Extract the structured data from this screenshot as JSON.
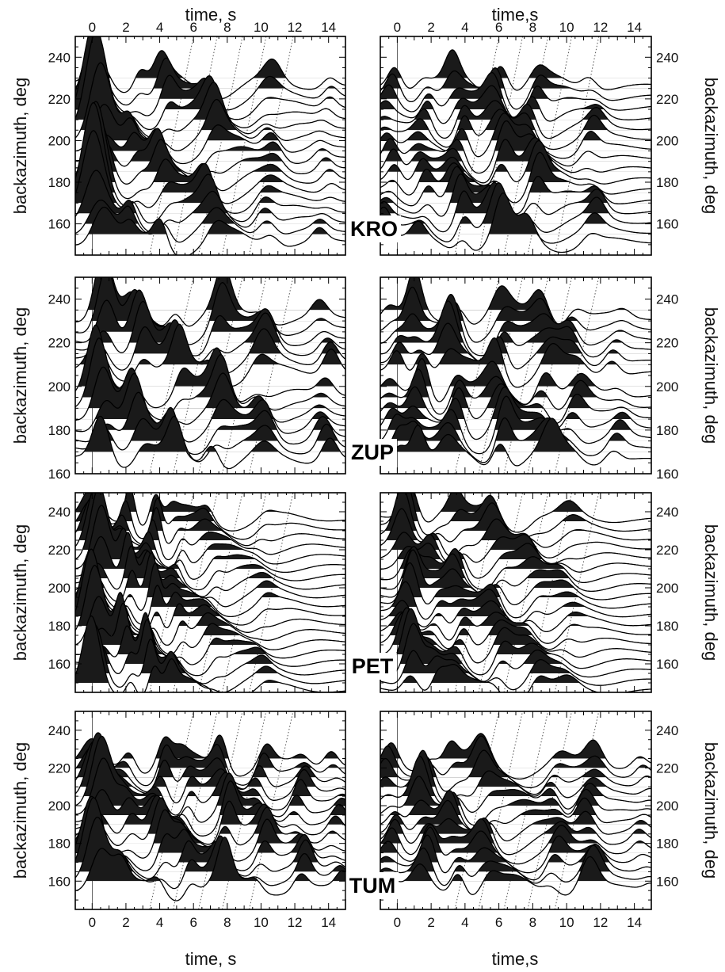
{
  "figure": {
    "top_xlabel_left": "time, s",
    "top_xlabel_right": "time,s",
    "bottom_xlabel_left": "time, s",
    "bottom_xlabel_right": "time,s",
    "ylabel": "backazimuth, deg",
    "colors": {
      "fill": "#1a1a1a",
      "line": "#000000",
      "guide": "#555555",
      "background": "#ffffff"
    }
  },
  "chart_data": [
    {
      "type": "line",
      "station": "KRO",
      "xlim": [
        -1,
        15
      ],
      "ylim": [
        145,
        250
      ],
      "xticks": [
        "0",
        "2",
        "4",
        "6",
        "8",
        "10",
        "12",
        "14"
      ],
      "yticks": [
        "160",
        "180",
        "200",
        "220",
        "240"
      ],
      "backazimuths": [
        155,
        160,
        165,
        170,
        175,
        180,
        185,
        190,
        195,
        200,
        205,
        210,
        215,
        220,
        225,
        230
      ],
      "pulses": [
        [
          0.4,
          3.0,
          0.6
        ],
        [
          2.5,
          0.6,
          0.35
        ],
        [
          4.2,
          0.9,
          0.4
        ],
        [
          7.0,
          1.0,
          0.45
        ],
        [
          10.5,
          0.7,
          0.5
        ],
        [
          13.8,
          0.4,
          0.4
        ]
      ]
    },
    {
      "type": "line",
      "station": "ZUP",
      "xlim": [
        -1,
        15
      ],
      "ylim": [
        160,
        250
      ],
      "xticks": [
        "0",
        "2",
        "4",
        "6",
        "8",
        "10",
        "12",
        "14"
      ],
      "yticks": [
        "160",
        "180",
        "200",
        "220",
        "240"
      ],
      "backazimuths": [
        170,
        175,
        180,
        185,
        190,
        195,
        200,
        210,
        215,
        220,
        225,
        230,
        235
      ],
      "pulses": [
        [
          0.5,
          2.0,
          0.5
        ],
        [
          2.7,
          1.3,
          0.45
        ],
        [
          5.0,
          1.0,
          0.4
        ],
        [
          7.4,
          1.2,
          0.45
        ],
        [
          10.0,
          0.9,
          0.5
        ],
        [
          13.8,
          0.8,
          0.45
        ]
      ]
    },
    {
      "type": "line",
      "station": "PET",
      "xlim": [
        -1,
        15
      ],
      "ylim": [
        145,
        250
      ],
      "xticks": [
        "0",
        "2",
        "4",
        "6",
        "8",
        "10",
        "12",
        "14"
      ],
      "yticks": [
        "160",
        "180",
        "200",
        "220",
        "240"
      ],
      "backazimuths": [
        150,
        155,
        160,
        165,
        170,
        175,
        180,
        185,
        190,
        195,
        200,
        205,
        210,
        215,
        220,
        225,
        230,
        235,
        240
      ],
      "pulses": [
        [
          0.2,
          2.5,
          0.5
        ],
        [
          2.0,
          1.5,
          0.3
        ],
        [
          3.5,
          1.5,
          0.3
        ],
        [
          5.0,
          0.7,
          0.3
        ],
        [
          7.0,
          0.4,
          0.35
        ],
        [
          10.0,
          0.25,
          0.4
        ]
      ]
    },
    {
      "type": "line",
      "station": "TUM",
      "xlim": [
        -1,
        15
      ],
      "ylim": [
        145,
        250
      ],
      "xticks": [
        "0",
        "2",
        "4",
        "6",
        "8",
        "10",
        "12",
        "14"
      ],
      "yticks": [
        "160",
        "180",
        "200",
        "220",
        "240"
      ],
      "backazimuths": [
        160,
        165,
        170,
        175,
        180,
        185,
        190,
        195,
        200,
        205,
        210,
        215,
        220,
        225
      ],
      "pulses": [
        [
          0.3,
          2.4,
          0.55
        ],
        [
          2.0,
          0.8,
          0.4
        ],
        [
          4.0,
          1.3,
          0.4
        ],
        [
          5.5,
          0.8,
          0.35
        ],
        [
          7.8,
          1.4,
          0.4
        ],
        [
          10.0,
          1.0,
          0.4
        ],
        [
          12.3,
          0.9,
          0.4
        ],
        [
          14.5,
          0.6,
          0.4
        ]
      ]
    },
    {
      "type": "line",
      "station": "KRO",
      "xlim": [
        -1,
        15
      ],
      "ylim": [
        145,
        250
      ],
      "xticks": [
        "0",
        "2",
        "4",
        "6",
        "8",
        "10",
        "12",
        "14"
      ],
      "yticks": [
        "160",
        "180",
        "200",
        "220",
        "240"
      ],
      "backazimuths": [
        155,
        160,
        165,
        170,
        175,
        180,
        185,
        190,
        195,
        200,
        205,
        210,
        215,
        220,
        225,
        230
      ],
      "pulses": [
        [
          -0.5,
          0.8,
          0.4
        ],
        [
          1.5,
          0.8,
          0.4
        ],
        [
          3.6,
          1.1,
          0.4
        ],
        [
          6.0,
          1.2,
          0.45
        ],
        [
          8.0,
          1.1,
          0.45
        ],
        [
          11.5,
          0.6,
          0.45
        ]
      ]
    },
    {
      "type": "line",
      "station": "ZUP",
      "xlim": [
        -1,
        15
      ],
      "ylim": [
        160,
        250
      ],
      "xticks": [
        "0",
        "2",
        "4",
        "6",
        "8",
        "10",
        "12",
        "14"
      ],
      "yticks": [
        "160",
        "180",
        "200",
        "220",
        "240"
      ],
      "backazimuths": [
        170,
        175,
        180,
        185,
        190,
        195,
        200,
        210,
        215,
        220,
        225,
        230,
        235
      ],
      "pulses": [
        [
          -0.2,
          0.8,
          0.4
        ],
        [
          1.2,
          1.3,
          0.4
        ],
        [
          3.3,
          1.3,
          0.45
        ],
        [
          6.0,
          1.3,
          0.45
        ],
        [
          8.8,
          1.0,
          0.5
        ],
        [
          10.5,
          0.8,
          0.5
        ],
        [
          13.0,
          0.5,
          0.45
        ]
      ]
    },
    {
      "type": "line",
      "station": "PET",
      "xlim": [
        -1,
        15
      ],
      "ylim": [
        145,
        250
      ],
      "xticks": [
        "0",
        "2",
        "4",
        "6",
        "8",
        "10",
        "12",
        "14"
      ],
      "yticks": [
        "160",
        "180",
        "200",
        "220",
        "240"
      ],
      "backazimuths": [
        150,
        155,
        160,
        165,
        170,
        175,
        180,
        185,
        190,
        195,
        200,
        205,
        210,
        215,
        220,
        225,
        230,
        235,
        240
      ],
      "pulses": [
        [
          0.6,
          1.8,
          0.45
        ],
        [
          2.2,
          0.7,
          0.4
        ],
        [
          3.6,
          0.9,
          0.4
        ],
        [
          5.9,
          0.8,
          0.45
        ],
        [
          8.0,
          0.5,
          0.45
        ],
        [
          10.0,
          0.4,
          0.5
        ]
      ]
    },
    {
      "type": "line",
      "station": "TUM",
      "xlim": [
        -1,
        15
      ],
      "ylim": [
        145,
        250
      ],
      "xticks": [
        "0",
        "2",
        "4",
        "6",
        "8",
        "10",
        "12",
        "14"
      ],
      "yticks": [
        "160",
        "180",
        "200",
        "220",
        "240"
      ],
      "backazimuths": [
        160,
        165,
        170,
        175,
        180,
        185,
        190,
        195,
        200,
        205,
        210,
        215,
        220,
        225
      ],
      "pulses": [
        [
          -0.4,
          0.9,
          0.4
        ],
        [
          1.6,
          1.5,
          0.45
        ],
        [
          3.3,
          0.9,
          0.4
        ],
        [
          5.3,
          0.9,
          0.45
        ],
        [
          9.4,
          0.8,
          0.45
        ],
        [
          11.4,
          1.1,
          0.5
        ],
        [
          14.6,
          0.4,
          0.4
        ]
      ]
    }
  ]
}
